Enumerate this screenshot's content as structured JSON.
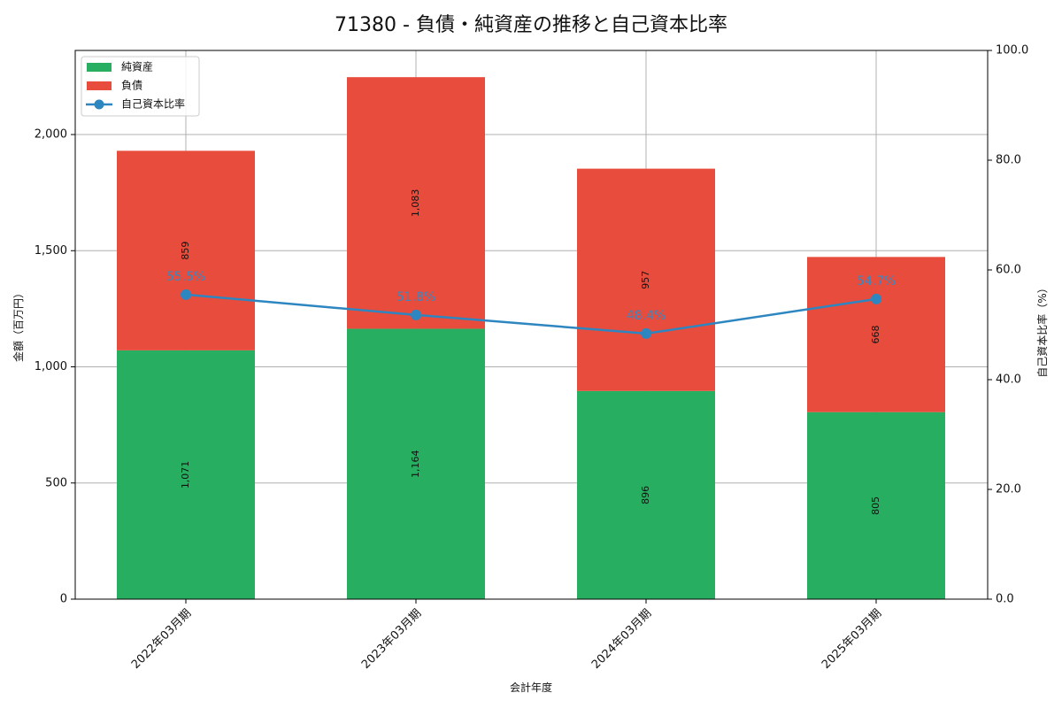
{
  "chart_data": {
    "type": "bar",
    "title": "71380 - 負債・純資産の推移と自己資本比率",
    "xlabel": "会計年度",
    "ylabel": "金額（百万円）",
    "y2label": "自己資本比率（%）",
    "categories": [
      "2022年03月期",
      "2023年03月期",
      "2024年03月期",
      "2025年03月期"
    ],
    "series": [
      {
        "name": "純資産",
        "type": "bar",
        "stacked": true,
        "color": "#27ae60",
        "values": [
          1071,
          1164,
          896,
          805
        ],
        "labels": [
          "1,071",
          "1,164",
          "896",
          "805"
        ]
      },
      {
        "name": "負債",
        "type": "bar",
        "stacked": true,
        "color": "#e74c3c",
        "values": [
          859,
          1083,
          957,
          668
        ],
        "labels": [
          "859",
          "1,083",
          "957",
          "668"
        ]
      },
      {
        "name": "自己資本比率",
        "type": "line",
        "axis": "right",
        "color": "#2e86c1",
        "values": [
          55.5,
          51.8,
          48.4,
          54.7
        ],
        "labels": [
          "55.5%",
          "51.8%",
          "48.4%",
          "54.7%"
        ]
      }
    ],
    "ylim": [
      0,
      2362
    ],
    "y2lim": [
      0,
      100
    ],
    "yticks": [
      0,
      500,
      1000,
      1500,
      2000
    ],
    "ytick_labels": [
      "0",
      "500",
      "1,000",
      "1,500",
      "2,000"
    ],
    "y2ticks": [
      0,
      20,
      40,
      60,
      80,
      100
    ],
    "y2tick_labels": [
      "0.0",
      "20.0",
      "40.0",
      "60.0",
      "80.0",
      "100.0"
    ],
    "grid": true,
    "legend_position": "upper left"
  }
}
